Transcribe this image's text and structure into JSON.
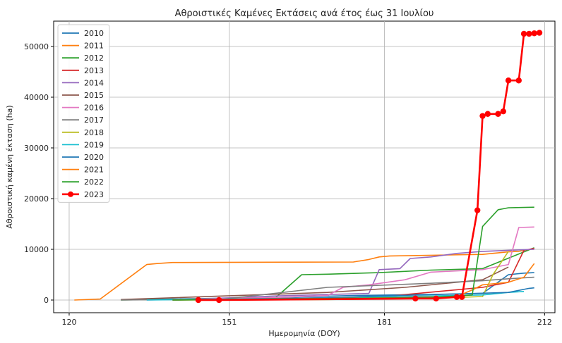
{
  "chart_data": {
    "type": "line",
    "title": "Αθροιστικές Καμένες Εκτάσεις ανά έτος έως 31 Ιουλίου",
    "xlabel": "Ημερομηνία (DOY)",
    "ylabel": "Αθροιστική καμένη έκταση (ha)",
    "xlim": [
      117,
      214
    ],
    "ylim": [
      -2500,
      55000
    ],
    "xticks": [
      120,
      151,
      181,
      212
    ],
    "yticks": [
      0,
      10000,
      20000,
      30000,
      40000,
      50000
    ],
    "grid": true,
    "legend_position": "top-left",
    "series": [
      {
        "name": "2010",
        "color": "#1f77b4",
        "markers": false,
        "x": [
          132,
          160,
          175,
          190,
          200,
          205,
          208,
          210
        ],
        "y": [
          100,
          500,
          900,
          1100,
          1300,
          5000,
          5300,
          5400
        ]
      },
      {
        "name": "2011",
        "color": "#ff7f0e",
        "markers": false,
        "x": [
          121,
          126,
          135,
          137,
          140,
          175,
          178,
          180,
          182,
          200,
          205,
          207,
          208
        ],
        "y": [
          0,
          200,
          7000,
          7200,
          7400,
          7500,
          8000,
          8500,
          8700,
          9000,
          9500,
          9600,
          9800
        ]
      },
      {
        "name": "2012",
        "color": "#2ca02c",
        "markers": false,
        "x": [
          130,
          150,
          160,
          165,
          170,
          180,
          190,
          200,
          210
        ],
        "y": [
          0,
          300,
          500,
          5000,
          5100,
          5400,
          5900,
          6200,
          10300
        ]
      },
      {
        "name": "2013",
        "color": "#d62728",
        "markers": false,
        "x": [
          140,
          160,
          180,
          200,
          205,
          208,
          210
        ],
        "y": [
          0,
          300,
          600,
          2500,
          3500,
          9800,
          10200
        ]
      },
      {
        "name": "2014",
        "color": "#9467bd",
        "markers": false,
        "x": [
          140,
          160,
          178,
          180,
          184,
          186,
          190,
          195,
          200,
          205,
          210
        ],
        "y": [
          0,
          800,
          1300,
          6000,
          6200,
          8200,
          8500,
          9200,
          9600,
          9800,
          10000
        ]
      },
      {
        "name": "2015",
        "color": "#8c564b",
        "markers": false,
        "x": [
          130,
          150,
          170,
          185,
          195,
          200,
          205
        ],
        "y": [
          100,
          800,
          1500,
          2500,
          3500,
          4000,
          6500
        ]
      },
      {
        "name": "2016",
        "color": "#e377c2",
        "markers": false,
        "x": [
          135,
          160,
          170,
          173,
          178,
          185,
          190,
          200,
          205,
          207,
          210
        ],
        "y": [
          0,
          500,
          900,
          2500,
          3000,
          4000,
          5500,
          6000,
          7000,
          14300,
          14400
        ]
      },
      {
        "name": "2017",
        "color": "#7f7f7f",
        "markers": false,
        "x": [
          130,
          150,
          170,
          190,
          200,
          205,
          210
        ],
        "y": [
          0,
          200,
          2500,
          3300,
          3800,
          4200,
          4500
        ]
      },
      {
        "name": "2018",
        "color": "#bcbd22",
        "markers": false,
        "x": [
          140,
          170,
          190,
          200,
          202,
          205
        ],
        "y": [
          0,
          100,
          300,
          700,
          5000,
          9600
        ]
      },
      {
        "name": "2019",
        "color": "#17becf",
        "markers": false,
        "x": [
          135,
          160,
          180,
          195,
          200,
          205,
          208
        ],
        "y": [
          0,
          300,
          600,
          900,
          1000,
          1500,
          1700
        ]
      },
      {
        "name": "2020",
        "color": "#1f77b4",
        "markers": false,
        "x": [
          140,
          170,
          180,
          195,
          205,
          209,
          210
        ],
        "y": [
          0,
          400,
          800,
          1200,
          1500,
          2300,
          2400
        ]
      },
      {
        "name": "2021",
        "color": "#ff7f0e",
        "markers": false,
        "x": [
          140,
          170,
          185,
          195,
          198,
          200,
          205,
          208,
          210
        ],
        "y": [
          0,
          300,
          500,
          700,
          2000,
          3000,
          3500,
          4500,
          7200
        ]
      },
      {
        "name": "2022",
        "color": "#2ca02c",
        "markers": false,
        "x": [
          140,
          170,
          190,
          195,
          198,
          200,
          203,
          205,
          210
        ],
        "y": [
          0,
          300,
          500,
          800,
          1000,
          14500,
          17800,
          18200,
          18300
        ]
      },
      {
        "name": "2023",
        "color": "#ff0000",
        "markers": true,
        "x": [
          145,
          149,
          187,
          191,
          195,
          196,
          199,
          200,
          201,
          203,
          204,
          205,
          207,
          208,
          209,
          210,
          211
        ],
        "y": [
          0,
          0,
          300,
          300,
          600,
          600,
          17700,
          36300,
          36700,
          36700,
          37200,
          43300,
          43300,
          52500,
          52500,
          52600,
          52700
        ]
      }
    ]
  }
}
